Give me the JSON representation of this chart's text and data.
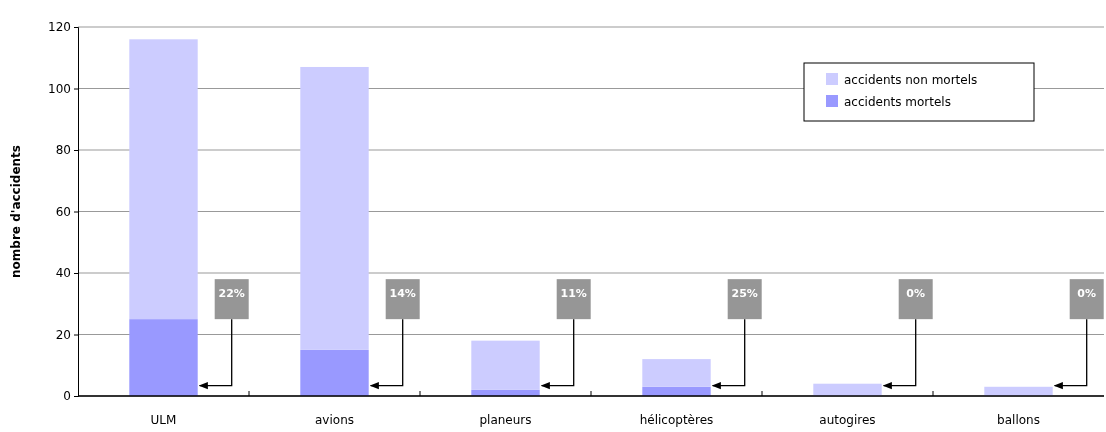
{
  "chart_data": {
    "type": "bar",
    "stacked": true,
    "ylabel": "nombre d'accidents",
    "categories": [
      "ULM",
      "avions",
      "planeurs",
      "hélicoptères",
      "autogires",
      "ballons"
    ],
    "series": [
      {
        "name": "accidents mortels",
        "color": "#9999ff",
        "values": [
          25,
          15,
          2,
          3,
          0,
          0
        ]
      },
      {
        "name": "accidents non mortels",
        "color": "#ccccff",
        "values": [
          91,
          92,
          16,
          9,
          4,
          3
        ]
      }
    ],
    "ylim": [
      0,
      120
    ],
    "yticks": [
      0,
      20,
      40,
      60,
      80,
      100,
      120
    ],
    "grid": "y",
    "legend": "top right",
    "annotations": [
      "22%",
      "14%",
      "11%",
      "25%",
      "0%",
      "0%"
    ]
  }
}
